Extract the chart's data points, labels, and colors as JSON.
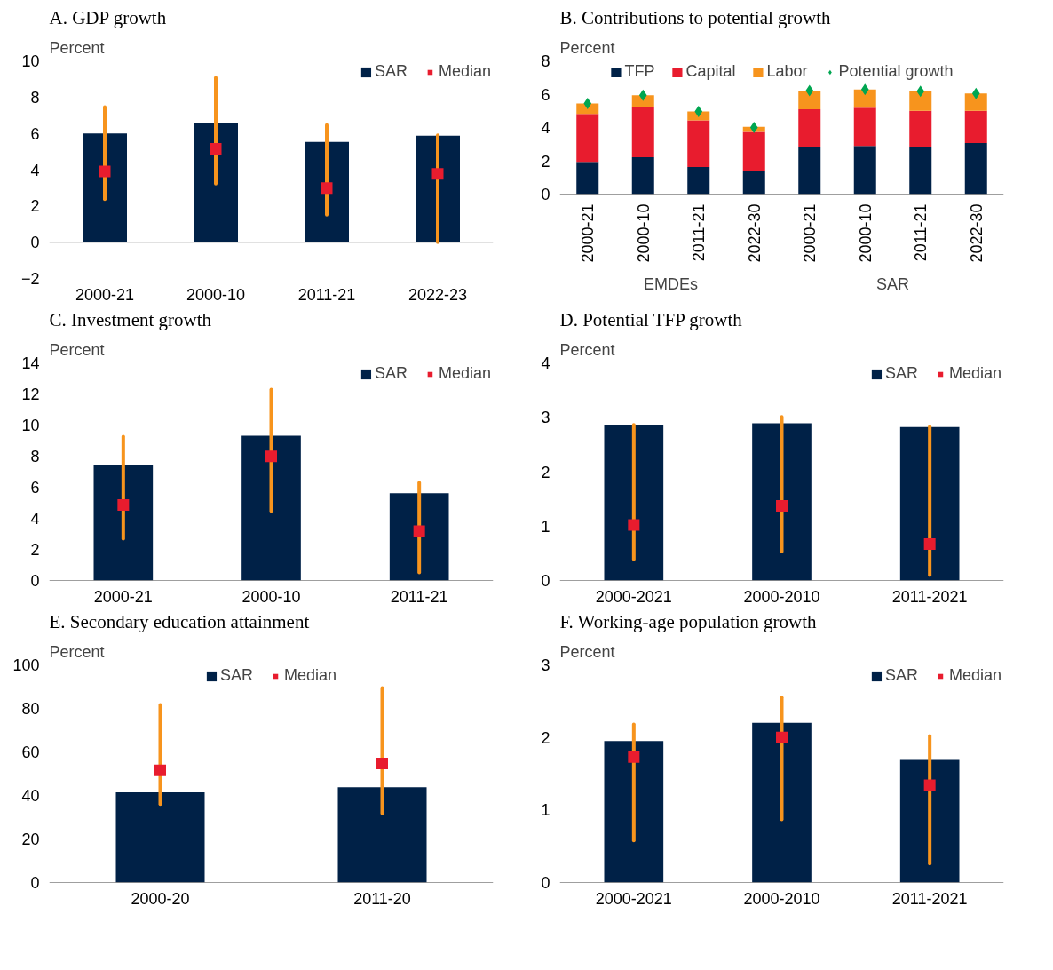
{
  "chart_data": [
    {
      "type": "bar",
      "title": "A. GDP growth",
      "ylabel": "Percent",
      "categories": [
        "2000-21",
        "2000-10",
        "2011-21",
        "2022-23"
      ],
      "ylim": [
        -2,
        10
      ],
      "yticks": [
        -2,
        0,
        2,
        4,
        6,
        8,
        10
      ],
      "legend": "top right",
      "series": [
        {
          "name": "SAR",
          "color": "#002147",
          "values": [
            6.0,
            6.55,
            5.53,
            5.87
          ]
        },
        {
          "name": "Median",
          "type": "scatter",
          "marker": "square",
          "color": "#e81c2e",
          "values": [
            3.9,
            5.15,
            2.98,
            3.77
          ],
          "errors": [
            [
              2.37,
              7.45
            ],
            [
              3.23,
              9.07
            ],
            [
              1.51,
              6.46
            ],
            [
              0.0,
              5.9
            ]
          ]
        }
      ]
    },
    {
      "type": "bar",
      "title": "B. Contributions to potential growth",
      "ylabel": "Percent",
      "categories": [
        "2000-21",
        "2000-10",
        "2011-21",
        "2022-30",
        "2000-21",
        "2000-10",
        "2011-21",
        "2022-30"
      ],
      "annotations": [
        "EMDEs",
        "SAR"
      ],
      "ylim": [
        0,
        8
      ],
      "yticks": [
        0,
        2,
        4,
        6,
        8
      ],
      "legend": "top",
      "stacked": true,
      "series": [
        {
          "name": "TFP",
          "color": "#002147",
          "values": [
            1.93,
            2.22,
            1.63,
            1.41,
            2.85,
            2.89,
            2.81,
            3.07
          ]
        },
        {
          "name": "Capital",
          "color": "#e81c2e",
          "values": [
            2.88,
            3.02,
            2.8,
            2.33,
            2.24,
            2.3,
            2.19,
            1.93
          ]
        },
        {
          "name": "Labor",
          "color": "#f7941d",
          "values": [
            0.63,
            0.7,
            0.53,
            0.3,
            1.13,
            1.09,
            1.17,
            1.04
          ]
        },
        {
          "name": "Potential growth",
          "type": "scatter",
          "marker": "diamond",
          "color": "#00a651",
          "values": [
            5.44,
            5.94,
            4.96,
            4.0,
            6.22,
            6.28,
            6.17,
            6.04
          ]
        }
      ]
    },
    {
      "type": "bar",
      "title": "C. Investment growth",
      "ylabel": "Percent",
      "categories": [
        "2000-21",
        "2000-10",
        "2011-21"
      ],
      "ylim": [
        0,
        14
      ],
      "yticks": [
        0,
        2,
        4,
        6,
        8,
        10,
        12,
        14
      ],
      "legend": "top right",
      "series": [
        {
          "name": "SAR",
          "color": "#002147",
          "values": [
            7.44,
            9.31,
            5.62
          ]
        },
        {
          "name": "Median",
          "type": "scatter",
          "marker": "square",
          "color": "#e81c2e",
          "values": [
            4.86,
            7.98,
            3.17
          ],
          "errors": [
            [
              2.69,
              9.26
            ],
            [
              4.47,
              12.28
            ],
            [
              0.52,
              6.29
            ]
          ]
        }
      ]
    },
    {
      "type": "bar",
      "title": "D. Potential TFP growth",
      "ylabel": "Percent",
      "categories": [
        "2000-2021",
        "2000-2010",
        "2011-2021"
      ],
      "ylim": [
        0,
        4
      ],
      "yticks": [
        0,
        1,
        2,
        3,
        4
      ],
      "legend": "top right",
      "series": [
        {
          "name": "SAR",
          "color": "#002147",
          "values": [
            2.85,
            2.89,
            2.82
          ]
        },
        {
          "name": "Median",
          "type": "scatter",
          "marker": "square",
          "color": "#e81c2e",
          "values": [
            1.02,
            1.37,
            0.67
          ],
          "errors": [
            [
              0.39,
              2.86
            ],
            [
              0.53,
              3.01
            ],
            [
              0.1,
              2.83
            ]
          ]
        }
      ]
    },
    {
      "type": "bar",
      "title": "E. Secondary education attainment",
      "ylabel": "Percent",
      "categories": [
        "2000-20",
        "2011-20"
      ],
      "ylim": [
        0,
        100
      ],
      "yticks": [
        0,
        20,
        40,
        60,
        80,
        100
      ],
      "legend": "top",
      "series": [
        {
          "name": "SAR",
          "color": "#002147",
          "values": [
            41.4,
            43.8
          ]
        },
        {
          "name": "Median",
          "type": "scatter",
          "marker": "square",
          "color": "#e81c2e",
          "values": [
            51.5,
            54.7
          ],
          "errors": [
            [
              36.0,
              81.6
            ],
            [
              31.7,
              89.4
            ]
          ]
        }
      ]
    },
    {
      "type": "bar",
      "title": "F. Working-age population growth",
      "ylabel": "Percent",
      "categories": [
        "2000-2021",
        "2000-2010",
        "2011-2021"
      ],
      "ylim": [
        0,
        3
      ],
      "yticks": [
        0,
        1,
        2,
        3
      ],
      "legend": "top right",
      "series": [
        {
          "name": "SAR",
          "color": "#002147",
          "values": [
            1.95,
            2.2,
            1.69
          ]
        },
        {
          "name": "Median",
          "type": "scatter",
          "marker": "square",
          "color": "#e81c2e",
          "values": [
            1.73,
            2.0,
            1.34
          ],
          "errors": [
            [
              0.58,
              2.18
            ],
            [
              0.87,
              2.55
            ],
            [
              0.26,
              2.02
            ]
          ]
        }
      ]
    }
  ]
}
